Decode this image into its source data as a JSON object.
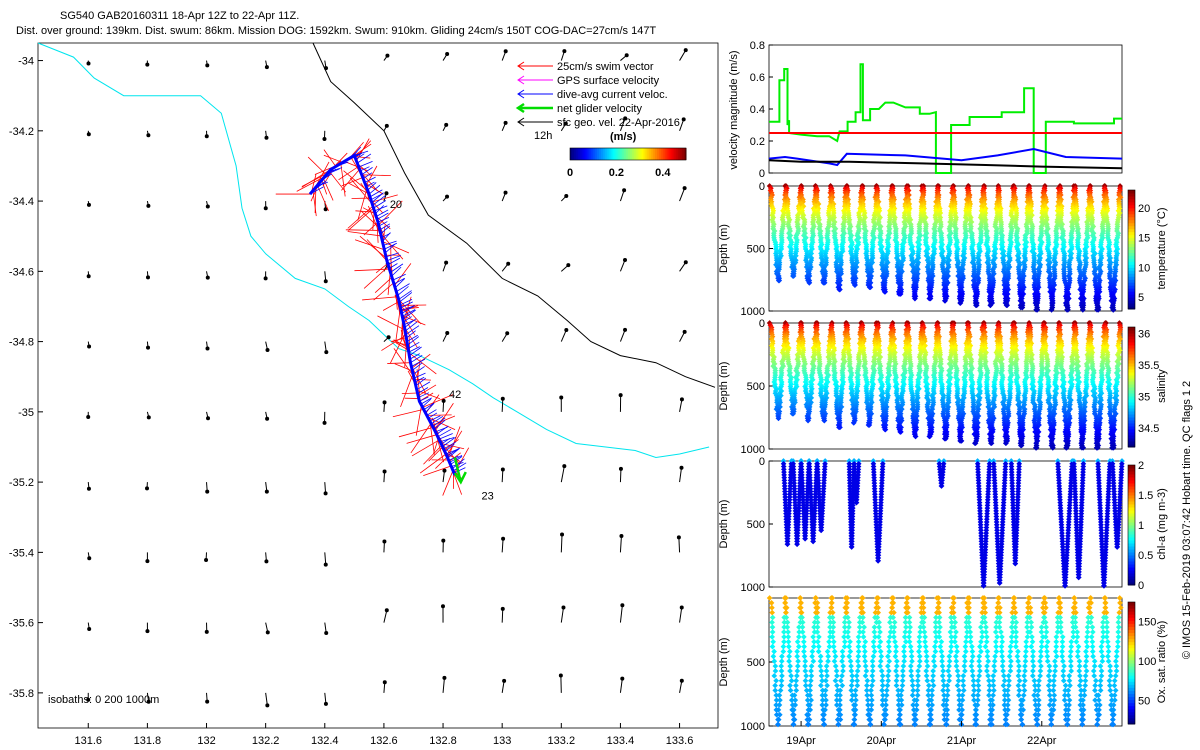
{
  "header": {
    "line1": "SG540 GAB20160311 18-Apr 12Z to 22-Apr 11Z.",
    "line2": "Dist. over ground: 139km. Dist. swum: 86km. Mission DOG: 1592km. Swum: 910km. Gliding 24cm/s 150T COG-DAC=27cm/s 147T"
  },
  "side_note": "© IMOS 15-Feb-2019 03:07:42 Hobart time. QC flags 1  2",
  "colors": {
    "swim": "#ff0000",
    "gps": "#ff00ff",
    "dac": "#0000ff",
    "net": "#00dd00",
    "sfc": "#000000",
    "iso200": "#00e5ee",
    "iso1000": "#000000"
  },
  "chart_data": [
    {
      "type": "scatter",
      "id": "map",
      "xlim": [
        131.43,
        133.73
      ],
      "ylim": [
        -35.9,
        -33.95
      ],
      "xticks": [
        "131.6",
        "131.8",
        "132",
        "132.2",
        "132.4",
        "132.6",
        "132.8",
        "133",
        "133.2",
        "133.4",
        "133.6"
      ],
      "yticks": [
        "-34",
        "-34.2",
        "-34.4",
        "-34.6",
        "-34.8",
        "-35",
        "-35.2",
        "-35.4",
        "-35.6",
        "-35.8"
      ],
      "legend": {
        "position": "top-right",
        "entries": [
          "25cm/s swim vector",
          "GPS surface velocity",
          "dive-avg current veloc.",
          "net glider velocity",
          "sfc geo. vel. 22-Apr-2016"
        ]
      },
      "legend_extra": "12h",
      "colorbar": {
        "label": "(m/s)",
        "ticks": [
          "0",
          "0.2",
          "0.4"
        ],
        "range": [
          0,
          0.5
        ]
      },
      "isobath_note": "isobaths: 0   200   1000m",
      "dive_labels": [
        {
          "text": "20",
          "x": 132.62,
          "y": -34.42
        },
        {
          "text": "42",
          "x": 132.82,
          "y": -34.96
        },
        {
          "text": "23",
          "x": 132.93,
          "y": -35.25
        }
      ],
      "track": [
        [
          132.35,
          -34.38
        ],
        [
          132.42,
          -34.31
        ],
        [
          132.5,
          -34.27
        ],
        [
          132.55,
          -34.38
        ],
        [
          132.58,
          -34.46
        ],
        [
          132.61,
          -34.57
        ],
        [
          132.65,
          -34.68
        ],
        [
          132.67,
          -34.76
        ],
        [
          132.69,
          -34.86
        ],
        [
          132.72,
          -34.97
        ],
        [
          132.77,
          -35.05
        ],
        [
          132.81,
          -35.12
        ],
        [
          132.84,
          -35.18
        ]
      ],
      "net_velocity": {
        "from": [
          132.84,
          -35.13
        ],
        "to": [
          132.86,
          -35.2
        ]
      },
      "isobath_200": [
        [
          131.43,
          -33.95
        ],
        [
          131.55,
          -33.99
        ],
        [
          131.62,
          -34.05
        ],
        [
          131.72,
          -34.1
        ],
        [
          131.85,
          -34.1
        ],
        [
          131.98,
          -34.1
        ],
        [
          132.05,
          -34.15
        ],
        [
          132.1,
          -34.3
        ],
        [
          132.12,
          -34.42
        ],
        [
          132.15,
          -34.5
        ],
        [
          132.2,
          -34.55
        ],
        [
          132.3,
          -34.62
        ],
        [
          132.4,
          -34.65
        ],
        [
          132.48,
          -34.7
        ],
        [
          132.55,
          -34.74
        ],
        [
          132.6,
          -34.78
        ],
        [
          132.65,
          -34.82
        ],
        [
          132.72,
          -34.84
        ],
        [
          132.82,
          -34.88
        ],
        [
          132.9,
          -34.92
        ],
        [
          132.97,
          -34.96
        ],
        [
          133.05,
          -35.0
        ],
        [
          133.15,
          -35.05
        ],
        [
          133.25,
          -35.09
        ],
        [
          133.35,
          -35.1
        ],
        [
          133.45,
          -35.11
        ],
        [
          133.52,
          -35.13
        ],
        [
          133.6,
          -35.12
        ],
        [
          133.7,
          -35.1
        ]
      ],
      "isobath_1000": [
        [
          132.36,
          -33.95
        ],
        [
          132.42,
          -34.06
        ],
        [
          132.5,
          -34.12
        ],
        [
          132.6,
          -34.2
        ],
        [
          132.67,
          -34.32
        ],
        [
          132.75,
          -34.44
        ],
        [
          132.88,
          -34.52
        ],
        [
          133.0,
          -34.62
        ],
        [
          133.12,
          -34.67
        ],
        [
          133.22,
          -34.74
        ],
        [
          133.3,
          -34.8
        ],
        [
          133.4,
          -34.84
        ],
        [
          133.52,
          -34.86
        ],
        [
          133.62,
          -34.9
        ],
        [
          133.72,
          -34.93
        ]
      ]
    },
    {
      "type": "line",
      "id": "velocity",
      "ylabel": "velocity magnitude (m/s)",
      "ylim": [
        0,
        0.8
      ],
      "yticks": [
        "0",
        "0.2",
        "0.4",
        "0.6",
        "0.8"
      ],
      "xlim": [
        18.6,
        23.0
      ],
      "series": [
        {
          "color": "#00ee00",
          "points": [
            [
              18.6,
              0.32
            ],
            [
              18.73,
              0.32
            ],
            [
              18.73,
              0.58
            ],
            [
              18.79,
              0.58
            ],
            [
              18.79,
              0.65
            ],
            [
              18.83,
              0.65
            ],
            [
              18.83,
              0.3
            ],
            [
              18.85,
              0.33
            ],
            [
              18.85,
              0.25
            ],
            [
              19.0,
              0.24
            ],
            [
              19.2,
              0.23
            ],
            [
              19.35,
              0.23
            ],
            [
              19.45,
              0.2
            ],
            [
              19.48,
              0.26
            ],
            [
              19.58,
              0.26
            ],
            [
              19.58,
              0.32
            ],
            [
              19.68,
              0.32
            ],
            [
              19.68,
              0.38
            ],
            [
              19.74,
              0.38
            ],
            [
              19.74,
              0.68
            ],
            [
              19.77,
              0.68
            ],
            [
              19.77,
              0.33
            ],
            [
              19.86,
              0.33
            ],
            [
              19.86,
              0.4
            ],
            [
              19.97,
              0.4
            ],
            [
              20.05,
              0.44
            ],
            [
              20.15,
              0.44
            ],
            [
              20.3,
              0.41
            ],
            [
              20.48,
              0.41
            ],
            [
              20.48,
              0.37
            ],
            [
              20.6,
              0.37
            ],
            [
              20.68,
              0.38
            ],
            [
              20.68,
              0.0
            ],
            [
              20.87,
              0.0
            ],
            [
              20.87,
              0.3
            ],
            [
              21.1,
              0.3
            ],
            [
              21.1,
              0.35
            ],
            [
              21.5,
              0.35
            ],
            [
              21.5,
              0.38
            ],
            [
              21.78,
              0.38
            ],
            [
              21.78,
              0.53
            ],
            [
              21.9,
              0.53
            ],
            [
              21.9,
              0.0
            ],
            [
              22.05,
              0.0
            ],
            [
              22.05,
              0.32
            ],
            [
              22.4,
              0.32
            ],
            [
              22.4,
              0.31
            ],
            [
              22.9,
              0.31
            ],
            [
              22.9,
              0.34
            ],
            [
              23.0,
              0.34
            ]
          ]
        },
        {
          "color": "#ff0000",
          "points": [
            [
              18.6,
              0.25
            ],
            [
              23.0,
              0.25
            ]
          ]
        },
        {
          "color": "#0000ff",
          "points": [
            [
              18.6,
              0.09
            ],
            [
              18.8,
              0.1
            ],
            [
              18.95,
              0.09
            ],
            [
              19.35,
              0.06
            ],
            [
              19.45,
              0.05
            ],
            [
              19.57,
              0.12
            ],
            [
              20.3,
              0.11
            ],
            [
              21.0,
              0.08
            ],
            [
              21.45,
              0.11
            ],
            [
              21.9,
              0.15
            ],
            [
              22.3,
              0.1
            ],
            [
              23.0,
              0.09
            ]
          ]
        },
        {
          "color": "#000000",
          "points": [
            [
              18.6,
              0.08
            ],
            [
              19.0,
              0.07
            ],
            [
              19.6,
              0.07
            ],
            [
              20.5,
              0.06
            ],
            [
              21.3,
              0.05
            ],
            [
              22.0,
              0.04
            ],
            [
              23.0,
              0.03
            ]
          ]
        }
      ]
    },
    {
      "type": "scatter",
      "id": "temperature",
      "ylabel": "Depth (m)",
      "clabel": "temperature (°C)",
      "ylim": [
        1000,
        0
      ],
      "yticks": [
        "0",
        "500",
        "1000"
      ],
      "cticks": [
        "5",
        "10",
        "15",
        "20"
      ],
      "crange": [
        3,
        23
      ],
      "vmin": 4,
      "vmax": 22,
      "pattern": "sawtooth",
      "n_dives": 23,
      "depth_max": [
        770,
        730,
        780,
        790,
        830,
        800,
        820,
        860,
        870,
        900,
        900,
        930,
        950,
        960,
        970,
        960,
        980,
        990,
        1000,
        1000,
        990,
        1000,
        1000
      ]
    },
    {
      "type": "scatter",
      "id": "salinity",
      "ylabel": "Depth (m)",
      "clabel": "salinity",
      "ylim": [
        1000,
        0
      ],
      "yticks": [
        "0",
        "500",
        "1000"
      ],
      "cticks": [
        "34.5",
        "35",
        "35.5",
        "36"
      ],
      "crange": [
        34.2,
        36.1
      ],
      "vmin": 34.3,
      "vmax": 36.0,
      "pattern": "sawtooth",
      "n_dives": 23,
      "depth_max": [
        770,
        730,
        780,
        790,
        830,
        800,
        820,
        860,
        870,
        900,
        900,
        930,
        950,
        960,
        970,
        960,
        980,
        990,
        1000,
        1000,
        990,
        1000,
        1000
      ]
    },
    {
      "type": "scatter",
      "id": "chla",
      "ylabel": "Depth (m)",
      "clabel": "chl-a (mg m-3)",
      "ylim": [
        1000,
        0
      ],
      "yticks": [
        "0",
        "500",
        "1000"
      ],
      "cticks": [
        "0",
        "0.5",
        "1",
        "1.5",
        "2"
      ],
      "crange": [
        0,
        2
      ],
      "segments": [
        [
          18.78,
          18.88,
          660
        ],
        [
          18.9,
          19.0,
          660
        ],
        [
          19.0,
          19.1,
          620
        ],
        [
          19.1,
          19.2,
          640
        ],
        [
          19.2,
          19.3,
          560
        ],
        [
          19.6,
          19.66,
          700
        ],
        [
          19.66,
          19.72,
          340
        ],
        [
          19.9,
          20.02,
          800
        ],
        [
          20.72,
          20.78,
          200
        ],
        [
          21.2,
          21.35,
          1000
        ],
        [
          21.4,
          21.55,
          980
        ],
        [
          21.62,
          21.72,
          820
        ],
        [
          22.2,
          22.38,
          1000
        ],
        [
          22.4,
          22.52,
          940
        ],
        [
          22.7,
          22.85,
          1000
        ],
        [
          22.88,
          23.0,
          700
        ]
      ]
    },
    {
      "type": "scatter",
      "id": "oxygen",
      "ylabel": "Depth (m)",
      "clabel": "Ox. sat. ratio (%)",
      "ylim": [
        1000,
        0
      ],
      "yticks": [
        "500",
        "1000"
      ],
      "cticks": [
        "50",
        "100",
        "150"
      ],
      "crange": [
        20,
        175
      ],
      "pattern": "sawtooth-sparse",
      "n_dives": 23
    }
  ],
  "shared_xaxis": {
    "ticks": [
      "19Apr",
      "20Apr",
      "21Apr",
      "22Apr"
    ],
    "values": [
      19,
      20,
      21,
      22
    ]
  }
}
